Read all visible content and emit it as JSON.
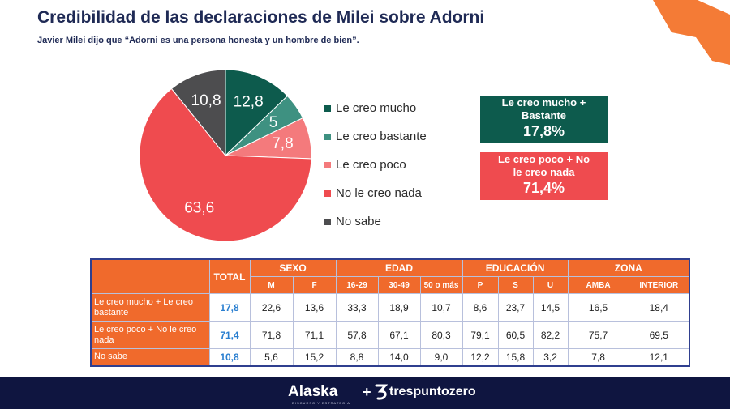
{
  "title": "Credibilidad de las declaraciones de Milei sobre Adorni",
  "subtitle": "Javier Milei dijo que “Adorni es una persona honesta y un hombre de bien”.",
  "colors": {
    "navy": "#1f2a55",
    "orange": "#f06a2c",
    "dark_green": "#0d5b4d",
    "red": "#ef4b4f"
  },
  "chart_data": [
    {
      "type": "pie",
      "labels": [
        "Le creo mucho",
        "Le creo bastante",
        "Le creo poco",
        "No le creo nada",
        "No sabe"
      ],
      "values": [
        12.8,
        5,
        7.8,
        63.6,
        10.8
      ],
      "value_labels": [
        "12,8",
        "5",
        "7,8",
        "63,6",
        "10,8"
      ],
      "colors": [
        "#0d5b4d",
        "#3e9181",
        "#f47a7c",
        "#ef4b4f",
        "#4d4d4f"
      ],
      "legend_position": "right"
    },
    {
      "type": "table",
      "group_headers": [
        "SEXO",
        "EDAD",
        "EDUCACIÓN",
        "ZONA"
      ],
      "total_header": "TOTAL",
      "columns": [
        "M",
        "F",
        "16-29",
        "30-49",
        "50 o más",
        "P",
        "S",
        "U",
        "AMBA",
        "INTERIOR"
      ],
      "rows": [
        {
          "label": "Le creo mucho + Le creo bastante",
          "total": "17,8",
          "values": [
            "22,6",
            "13,6",
            "33,3",
            "18,9",
            "10,7",
            "8,6",
            "23,7",
            "14,5",
            "16,5",
            "18,4"
          ]
        },
        {
          "label": "Le creo poco + No le creo nada",
          "total": "71,4",
          "values": [
            "71,8",
            "71,1",
            "57,8",
            "67,1",
            "80,3",
            "79,1",
            "60,5",
            "82,2",
            "75,7",
            "69,5"
          ]
        },
        {
          "label": "No sabe",
          "total": "10,8",
          "values": [
            "5,6",
            "15,2",
            "8,8",
            "14,0",
            "9,0",
            "12,2",
            "15,8",
            "3,2",
            "7,8",
            "12,1"
          ]
        }
      ]
    }
  ],
  "summary": [
    {
      "label": "Le creo mucho + Bastante",
      "value": "17,8%"
    },
    {
      "label": "Le creo poco + No le creo nada",
      "value": "71,4%"
    }
  ],
  "footer": {
    "logo1": "Alaska",
    "logo1_tagline": "DISCURSO Y ESTRATEGIA",
    "plus": "+",
    "logo2": "trespuntozero"
  }
}
